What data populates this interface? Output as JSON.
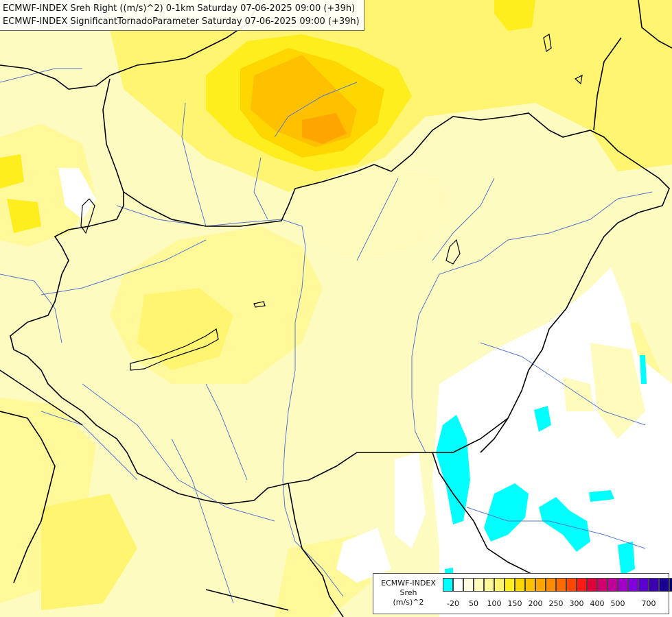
{
  "title": {
    "line1": "ECMWF-INDEX Sreh Right ((m/s)^2) 0-1km Saturday 07-06-2025 09:00 (+39h)",
    "line2": "ECMWF-INDEX SignificantTornadoParameter Saturday 07-06-2025 09:00 (+39h)"
  },
  "legend": {
    "title_line1": "ECMWF-INDEX",
    "title_line2": "Sreh",
    "title_line3": "(m/s)^2",
    "colors": [
      "#00ffff",
      "#ffffff",
      "#fffde0",
      "#fffbbd",
      "#fff99a",
      "#fff570",
      "#ffee1e",
      "#ffd700",
      "#ffc000",
      "#ffa500",
      "#ff8c00",
      "#ff6a00",
      "#ff4500",
      "#ff1a1a",
      "#e0003a",
      "#d0006e",
      "#c0009a",
      "#a000c8",
      "#8000e0",
      "#5a00d0",
      "#3a00b0",
      "#1a0090",
      "#000070"
    ],
    "ticks": [
      "-20",
      "50",
      "100",
      "150",
      "200",
      "250",
      "300",
      "400",
      "500",
      "700"
    ]
  },
  "map_colors": {
    "background": "#fdfbc0",
    "light_yellow": "#fffbbd",
    "yellow": "#fff570",
    "strong_yellow": "#ffee1e",
    "gold": "#ffd700",
    "orange": "#ffc000",
    "white": "#ffffff",
    "cyan": "#00ffff",
    "border_line": "#000000",
    "river_line": "#5577cc"
  }
}
